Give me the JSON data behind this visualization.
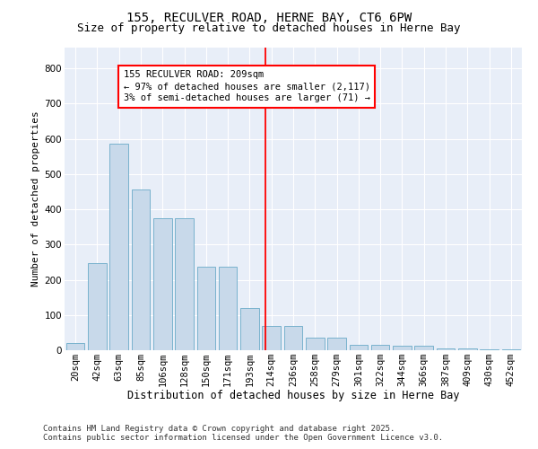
{
  "title1": "155, RECULVER ROAD, HERNE BAY, CT6 6PW",
  "title2": "Size of property relative to detached houses in Herne Bay",
  "xlabel": "Distribution of detached houses by size in Herne Bay",
  "ylabel": "Number of detached properties",
  "categories": [
    "20sqm",
    "42sqm",
    "63sqm",
    "85sqm",
    "106sqm",
    "128sqm",
    "150sqm",
    "171sqm",
    "193sqm",
    "214sqm",
    "236sqm",
    "258sqm",
    "279sqm",
    "301sqm",
    "322sqm",
    "344sqm",
    "366sqm",
    "387sqm",
    "409sqm",
    "430sqm",
    "452sqm"
  ],
  "values": [
    20,
    248,
    585,
    455,
    375,
    375,
    238,
    238,
    120,
    68,
    68,
    35,
    35,
    15,
    15,
    12,
    12,
    5,
    5,
    2,
    2
  ],
  "bar_color": "#c8d9ea",
  "bar_edge_color": "#6aaac8",
  "vline_color": "red",
  "annotation_text": "155 RECULVER ROAD: 209sqm\n← 97% of detached houses are smaller (2,117)\n3% of semi-detached houses are larger (71) →",
  "annotation_box_color": "white",
  "annotation_box_edge_color": "red",
  "ylim": [
    0,
    860
  ],
  "yticks": [
    0,
    100,
    200,
    300,
    400,
    500,
    600,
    700,
    800
  ],
  "background_color": "#e8eef8",
  "footer_text": "Contains HM Land Registry data © Crown copyright and database right 2025.\nContains public sector information licensed under the Open Government Licence v3.0.",
  "title1_fontsize": 10,
  "title2_fontsize": 9,
  "xlabel_fontsize": 8.5,
  "ylabel_fontsize": 8,
  "tick_fontsize": 7.5,
  "annotation_fontsize": 7.5,
  "footer_fontsize": 6.5
}
